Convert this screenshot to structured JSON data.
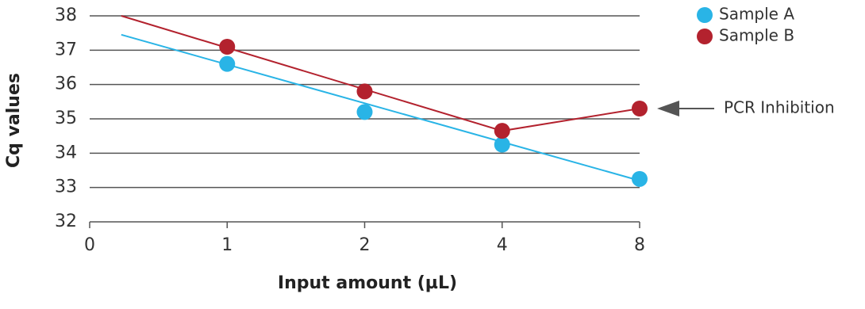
{
  "chart_data": {
    "type": "scatter",
    "x_label": "Input amount (µL)",
    "y_label": "Cq values",
    "categories": [
      "0",
      "1",
      "2",
      "4",
      "8"
    ],
    "ylim": [
      32,
      38
    ],
    "yticks": [
      32,
      33,
      34,
      35,
      36,
      37,
      38
    ],
    "grid": true,
    "legend": "top-right",
    "series": [
      {
        "name": "Sample A",
        "color": "#29b4e6",
        "values": [
          null,
          36.6,
          35.2,
          34.25,
          33.25
        ],
        "fit_line": [
          [
            0.23,
            37.45
          ],
          [
            4,
            33.2
          ]
        ]
      },
      {
        "name": "Sample B",
        "color": "#b3222e",
        "values": [
          null,
          37.1,
          35.8,
          34.65,
          35.3
        ],
        "fit_line": [
          [
            0.23,
            38.0
          ],
          [
            3,
            34.65
          ],
          [
            4,
            35.3
          ]
        ]
      }
    ],
    "annotation": "PCR Inhibition"
  }
}
